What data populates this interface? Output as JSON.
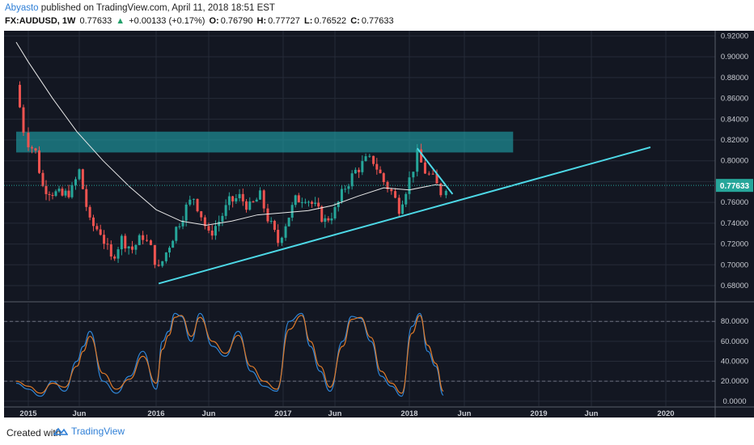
{
  "header": {
    "author": "Abyasto",
    "published": "published on TradingView.com, April 11, 2018 18:51 EST",
    "symbol": "FX:AUDUSD, 1W",
    "last": "0.77633",
    "change": "+0.00133 (+0.17%)",
    "o_label": "O:",
    "o": "0.76790",
    "h_label": "H:",
    "h": "0.77727",
    "l_label": "L:",
    "l": "0.76522",
    "c_label": "C:",
    "c": "0.77633"
  },
  "footer": {
    "created": "Created with",
    "brand": "TradingView",
    "logo_icon": "tradingview-logo-icon"
  },
  "colors": {
    "background": "#131722",
    "up": "#26a69a",
    "down": "#ef5350",
    "ma": "#e8e8e8",
    "trendline": "#4dd8e6",
    "zone": "#1f9aa3",
    "stoch_k": "#2f86d8",
    "stoch_d": "#e07b2a",
    "price_badge": "#26a69a"
  },
  "chart_data": [
    {
      "type": "candlestick",
      "title": "FX:AUDUSD, 1W",
      "x_ticks": [
        "2015",
        "Jun",
        "2016",
        "Jun",
        "2017",
        "Jun",
        "2018",
        "Jun",
        "2019",
        "Jun",
        "2020"
      ],
      "y_ticks": [
        "0.92000",
        "0.90000",
        "0.88000",
        "0.86000",
        "0.84000",
        "0.82000",
        "0.80000",
        "0.78000",
        "0.76000",
        "0.74000",
        "0.72000",
        "0.70000",
        "0.68000"
      ],
      "ylim": [
        0.666,
        0.925
      ],
      "last_price_label": "0.77633",
      "last_price": 0.77633,
      "grid": true,
      "series_close_path": [
        [
          2014.9,
          0.873
        ],
        [
          2014.96,
          0.83
        ],
        [
          2015.0,
          0.818
        ],
        [
          2015.06,
          0.808
        ],
        [
          2015.12,
          0.775
        ],
        [
          2015.2,
          0.77
        ],
        [
          2015.28,
          0.766
        ],
        [
          2015.36,
          0.772
        ],
        [
          2015.42,
          0.79
        ],
        [
          2015.5,
          0.74
        ],
        [
          2015.58,
          0.732
        ],
        [
          2015.66,
          0.705
        ],
        [
          2015.74,
          0.725
        ],
        [
          2015.82,
          0.715
        ],
        [
          2015.9,
          0.728
        ],
        [
          2015.96,
          0.715
        ],
        [
          2016.02,
          0.695
        ],
        [
          2016.08,
          0.712
        ],
        [
          2016.16,
          0.735
        ],
        [
          2016.24,
          0.755
        ],
        [
          2016.3,
          0.765
        ],
        [
          2016.36,
          0.748
        ],
        [
          2016.42,
          0.728
        ],
        [
          2016.5,
          0.742
        ],
        [
          2016.58,
          0.76
        ],
        [
          2016.66,
          0.765
        ],
        [
          2016.74,
          0.755
        ],
        [
          2016.82,
          0.766
        ],
        [
          2016.88,
          0.745
        ],
        [
          2016.96,
          0.722
        ],
        [
          2017.02,
          0.74
        ],
        [
          2017.1,
          0.762
        ],
        [
          2017.18,
          0.766
        ],
        [
          2017.26,
          0.755
        ],
        [
          2017.34,
          0.742
        ],
        [
          2017.42,
          0.752
        ],
        [
          2017.5,
          0.775
        ],
        [
          2017.58,
          0.79
        ],
        [
          2017.66,
          0.8
        ],
        [
          2017.72,
          0.8
        ],
        [
          2017.8,
          0.78
        ],
        [
          2017.86,
          0.77
        ],
        [
          2017.92,
          0.755
        ],
        [
          2018.0,
          0.782
        ],
        [
          2018.06,
          0.805
        ],
        [
          2018.12,
          0.79
        ],
        [
          2018.18,
          0.782
        ],
        [
          2018.24,
          0.77
        ],
        [
          2018.28,
          0.7763
        ]
      ],
      "moving_average": [
        [
          2014.9,
          0.914
        ],
        [
          2015.0,
          0.895
        ],
        [
          2015.2,
          0.86
        ],
        [
          2015.4,
          0.828
        ],
        [
          2015.6,
          0.8
        ],
        [
          2015.8,
          0.775
        ],
        [
          2016.0,
          0.753
        ],
        [
          2016.2,
          0.742
        ],
        [
          2016.4,
          0.738
        ],
        [
          2016.6,
          0.742
        ],
        [
          2016.8,
          0.748
        ],
        [
          2017.0,
          0.75
        ],
        [
          2017.2,
          0.752
        ],
        [
          2017.4,
          0.757
        ],
        [
          2017.6,
          0.766
        ],
        [
          2017.8,
          0.774
        ],
        [
          2018.0,
          0.772
        ],
        [
          2018.2,
          0.777
        ],
        [
          2018.28,
          0.776
        ]
      ],
      "resistance_zone": {
        "x": [
          2014.9,
          2018.8
        ],
        "y": [
          0.808,
          0.828
        ]
      },
      "trendlines": [
        {
          "name": "ascending support",
          "points": [
            [
              2016.02,
              0.682
            ],
            [
              2019.88,
              0.813
            ]
          ]
        },
        {
          "name": "descending resistance",
          "points": [
            [
              2018.06,
              0.812
            ],
            [
              2018.33,
              0.768
            ]
          ]
        }
      ]
    },
    {
      "type": "line",
      "indicator": "stochastic",
      "y_ticks": [
        "80.0000",
        "60.0000",
        "40.0000",
        "20.0000",
        "0.0000"
      ],
      "ylim": [
        -5,
        98
      ],
      "levels": [
        80,
        20
      ],
      "series": [
        {
          "values_x": [
            2014.9,
            2015.0,
            2015.1,
            2015.2,
            2015.3,
            2015.4,
            2015.45,
            2015.5,
            2015.6,
            2015.7,
            2015.8,
            2015.9,
            2016.0,
            2016.05,
            2016.1,
            2016.15,
            2016.2,
            2016.28,
            2016.35,
            2016.45,
            2016.55,
            2016.65,
            2016.75,
            2016.85,
            2016.95,
            2017.05,
            2017.15,
            2017.22,
            2017.3,
            2017.38,
            2017.48,
            2017.55,
            2017.62,
            2017.7,
            2017.78,
            2017.86,
            2017.94,
            2018.02,
            2018.08,
            2018.14,
            2018.2,
            2018.26
          ],
          "values": [
            18,
            12,
            5,
            20,
            10,
            40,
            55,
            70,
            20,
            8,
            25,
            50,
            12,
            60,
            70,
            88,
            85,
            60,
            88,
            55,
            45,
            70,
            30,
            15,
            10,
            80,
            88,
            55,
            30,
            10,
            60,
            85,
            83,
            60,
            25,
            15,
            5,
            75,
            88,
            50,
            35,
            6
          ]
        },
        {
          "values_x": [
            2014.9,
            2015.0,
            2015.1,
            2015.2,
            2015.3,
            2015.4,
            2015.45,
            2015.5,
            2015.6,
            2015.7,
            2015.8,
            2015.9,
            2016.0,
            2016.05,
            2016.1,
            2016.15,
            2016.2,
            2016.28,
            2016.35,
            2016.45,
            2016.55,
            2016.65,
            2016.75,
            2016.85,
            2016.95,
            2017.05,
            2017.15,
            2017.22,
            2017.3,
            2017.38,
            2017.48,
            2017.55,
            2017.62,
            2017.7,
            2017.78,
            2017.86,
            2017.94,
            2018.02,
            2018.08,
            2018.14,
            2018.2,
            2018.26
          ],
          "values": [
            20,
            15,
            8,
            18,
            14,
            35,
            50,
            65,
            28,
            12,
            22,
            45,
            18,
            52,
            66,
            84,
            86,
            65,
            84,
            60,
            48,
            66,
            35,
            20,
            12,
            72,
            86,
            60,
            35,
            14,
            55,
            82,
            84,
            64,
            30,
            18,
            8,
            68,
            86,
            56,
            38,
            10
          ]
        }
      ]
    }
  ]
}
